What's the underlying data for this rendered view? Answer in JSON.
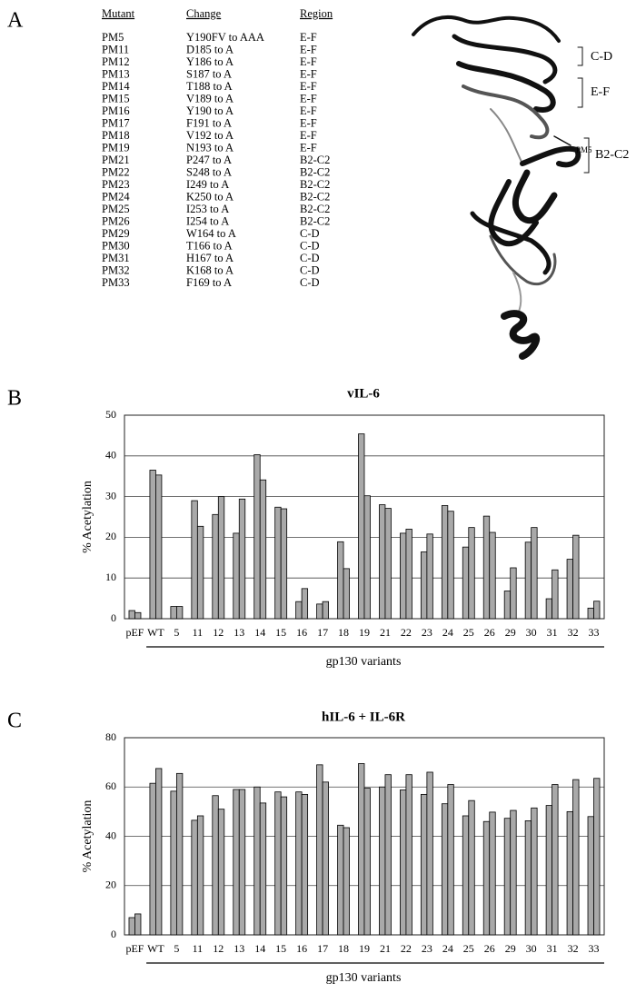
{
  "panels": [
    "A",
    "B",
    "C"
  ],
  "table": {
    "header": [
      "Mutant",
      "Change",
      "Region"
    ],
    "rows": [
      [
        "PM5",
        "Y190FV to AAA",
        "E-F"
      ],
      [
        "PM11",
        "D185 to A",
        "E-F"
      ],
      [
        "PM12",
        "Y186 to A",
        "E-F"
      ],
      [
        "PM13",
        "S187 to A",
        "E-F"
      ],
      [
        "PM14",
        "T188 to A",
        "E-F"
      ],
      [
        "PM15",
        "V189 to A",
        "E-F"
      ],
      [
        "PM16",
        "Y190 to A",
        "E-F"
      ],
      [
        "PM17",
        "F191 to A",
        "E-F"
      ],
      [
        "PM18",
        "V192 to A",
        "E-F"
      ],
      [
        "PM19",
        "N193 to A",
        "E-F"
      ],
      [
        "PM21",
        "P247 to A",
        "B2-C2"
      ],
      [
        "PM22",
        "S248 to A",
        "B2-C2"
      ],
      [
        "PM23",
        "I249 to A",
        "B2-C2"
      ],
      [
        "PM24",
        "K250 to A",
        "B2-C2"
      ],
      [
        "PM25",
        "I253 to A",
        "B2-C2"
      ],
      [
        "PM26",
        "I254 to A",
        "B2-C2"
      ],
      [
        "PM29",
        "W164 to A",
        "C-D"
      ],
      [
        "PM30",
        "T166 to A",
        "C-D"
      ],
      [
        "PM31",
        "H167 to A",
        "C-D"
      ],
      [
        "PM32",
        "K168 to A",
        "C-D"
      ],
      [
        "PM33",
        "F169 to A",
        "C-D"
      ]
    ]
  },
  "structure": {
    "labels": [
      "C-D",
      "E-F",
      "PM5",
      "B2-C2"
    ]
  },
  "chart_data": [
    {
      "type": "bar",
      "title": "vIL-6",
      "y_label": "% Acetylation",
      "x_label": "gp130 variants",
      "categories": [
        "pEF",
        "WT",
        "5",
        "11",
        "12",
        "13",
        "14",
        "15",
        "16",
        "17",
        "18",
        "19",
        "21",
        "22",
        "23",
        "24",
        "25",
        "26",
        "29",
        "30",
        "31",
        "32",
        "33"
      ],
      "series": [
        {
          "color": "#a9a9a9",
          "values": [
            2,
            36.5,
            3,
            29,
            25.6,
            21,
            40.3,
            27.4,
            4.2,
            3.6,
            18.9,
            45.4,
            28,
            21,
            16.4,
            27.8,
            17.6,
            25.2,
            6.8,
            18.8,
            4.9,
            14.6,
            2.6
          ]
        },
        {
          "color": "#a9a9a9",
          "values": [
            1.5,
            35.3,
            3,
            22.7,
            30,
            29.4,
            34.1,
            27,
            7.4,
            4.2,
            12.3,
            30.2,
            27.1,
            22,
            20.8,
            26.4,
            22.4,
            21.2,
            12.5,
            22.4,
            12,
            20.5,
            4.3
          ]
        }
      ],
      "ylim": [
        0,
        50
      ],
      "yticks": [
        0,
        10,
        20,
        30,
        40,
        50
      ],
      "grid": true
    },
    {
      "type": "bar",
      "title": "hIL-6 + IL-6R",
      "y_label": "% Acetylation",
      "x_label": "gp130 variants",
      "categories": [
        "pEF",
        "WT",
        "5",
        "11",
        "12",
        "13",
        "14",
        "15",
        "16",
        "17",
        "18",
        "19",
        "21",
        "22",
        "23",
        "24",
        "25",
        "26",
        "29",
        "30",
        "31",
        "32",
        "33"
      ],
      "series": [
        {
          "color": "#a9a9a9",
          "values": [
            7,
            61.5,
            58.3,
            46.5,
            56.5,
            59,
            60,
            58,
            58,
            69,
            44.5,
            69.5,
            60,
            58.8,
            57,
            53.2,
            48.3,
            46,
            47.3,
            46.3,
            52.5,
            50,
            48
          ]
        },
        {
          "color": "#a9a9a9",
          "values": [
            8.5,
            67.5,
            65.5,
            48.3,
            51,
            59,
            53.5,
            56,
            57,
            62,
            43.5,
            59.5,
            65,
            65,
            66,
            61,
            54.5,
            49.8,
            50.5,
            51.5,
            61,
            63,
            63.5
          ]
        }
      ],
      "ylim": [
        0,
        80
      ],
      "yticks": [
        0,
        20,
        40,
        60,
        80
      ],
      "grid": true
    }
  ]
}
